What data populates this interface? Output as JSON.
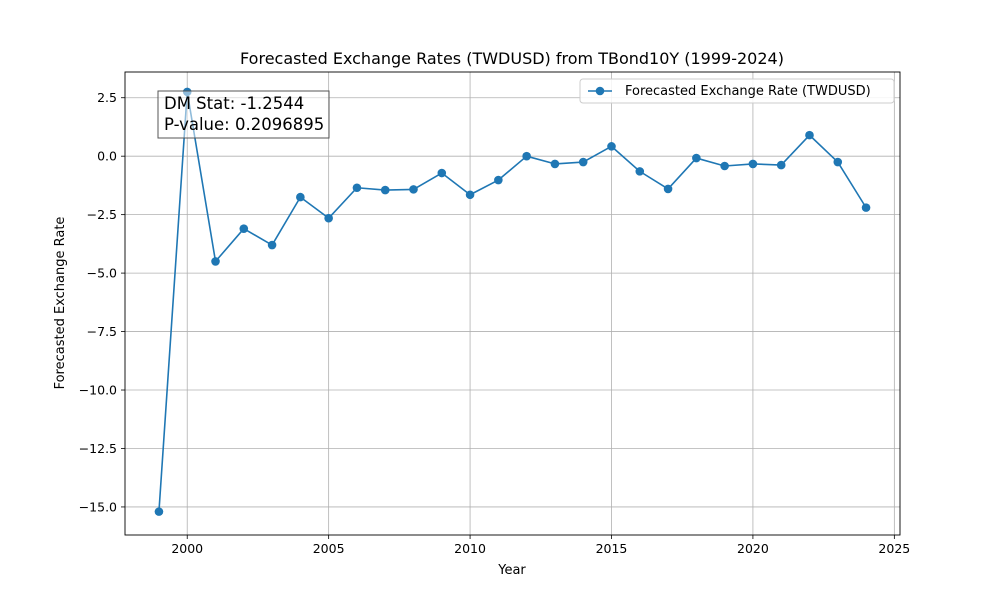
{
  "chart_data": {
    "type": "line",
    "title": "Forecasted Exchange Rates (TWDUSD) from TBond10Y (1999-2024)",
    "xlabel": "Year",
    "ylabel": "Forecasted Exchange Rate",
    "xlim": [
      1997.8,
      2025.2
    ],
    "ylim": [
      -16.2,
      3.6
    ],
    "x_ticks": [
      2000,
      2005,
      2010,
      2015,
      2020,
      2025
    ],
    "x_tick_labels": [
      "2000",
      "2005",
      "2010",
      "2015",
      "2020",
      "2025"
    ],
    "y_ticks": [
      2.5,
      0.0,
      -2.5,
      -5.0,
      -7.5,
      -10.0,
      -12.5,
      -15.0
    ],
    "y_tick_labels": [
      "2.5",
      "0.0",
      "−2.5",
      "−5.0",
      "−7.5",
      "−10.0",
      "−12.5",
      "−15.0"
    ],
    "grid": true,
    "legend_position": "top-right",
    "series": [
      {
        "name": "Forecasted Exchange Rate (TWDUSD)",
        "color": "#1f77b4",
        "x": [
          1999,
          2000,
          2001,
          2002,
          2003,
          2004,
          2005,
          2006,
          2007,
          2008,
          2009,
          2010,
          2011,
          2012,
          2013,
          2014,
          2015,
          2016,
          2017,
          2018,
          2019,
          2020,
          2021,
          2022,
          2023,
          2024
        ],
        "values": [
          -15.2,
          2.75,
          -4.5,
          -3.1,
          -3.8,
          -1.75,
          -2.65,
          -1.35,
          -1.45,
          -1.42,
          -0.72,
          -1.65,
          -1.02,
          0.0,
          -0.33,
          -0.25,
          0.42,
          -0.65,
          -1.4,
          -0.08,
          -0.42,
          -0.33,
          -0.38,
          0.9,
          -0.25,
          -2.2
        ]
      }
    ],
    "annotation": {
      "line1": "DM Stat: -1.2544",
      "line2": "P-value: 0.2096895"
    }
  }
}
